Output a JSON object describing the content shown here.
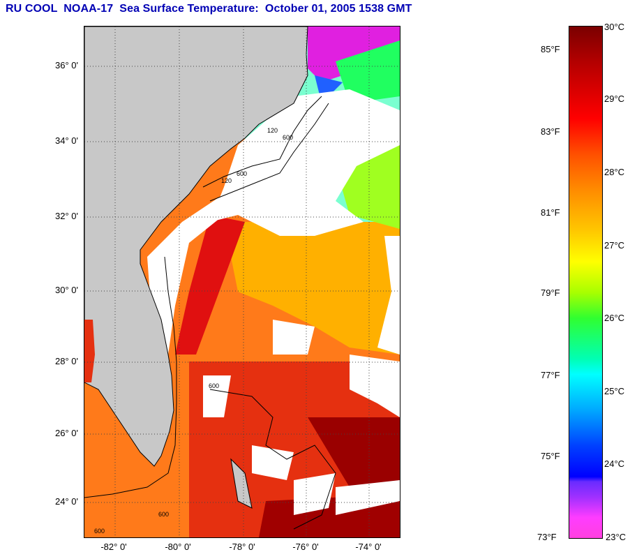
{
  "title": "RU COOL  NOAA-17  Sea Surface Temperature:  October 01, 2005 1538 GMT",
  "map": {
    "lat_labels": [
      "36° 0'",
      "34° 0'",
      "32° 0'",
      "30° 0'",
      "28° 0'",
      "26° 0'",
      "24° 0'"
    ],
    "lon_labels": [
      "-82° 0'",
      "-80° 0'",
      "-78° 0'",
      "-76° 0'",
      "-74° 0'"
    ],
    "contour_labels": [
      "120",
      "600",
      "120",
      "600",
      "600",
      "600",
      "600"
    ],
    "land_color": "#c8c8c8",
    "cloud_color": "#ffffff"
  },
  "colorbar": {
    "fahrenheit_labels": [
      "85°F",
      "83°F",
      "81°F",
      "79°F",
      "77°F",
      "75°F",
      "73°F"
    ],
    "celsius_labels": [
      "30°C",
      "29°C",
      "28°C",
      "27°C",
      "26°C",
      "25°C",
      "24°C",
      "23°C"
    ],
    "colors": [
      "#7a0000",
      "#ff0000",
      "#ff8c00",
      "#ffff00",
      "#30ff30",
      "#00ffff",
      "#0000ff",
      "#ff40e0"
    ]
  }
}
